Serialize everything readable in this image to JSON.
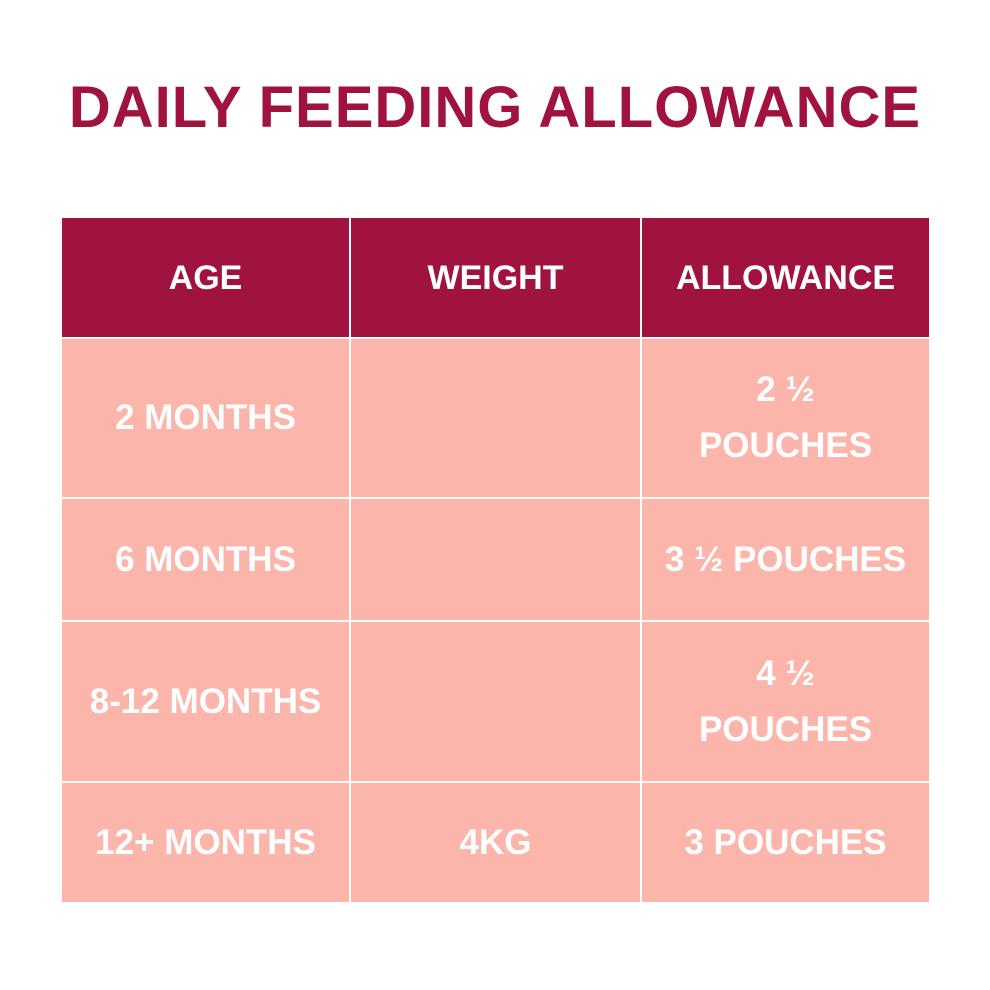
{
  "title": "DAILY FEEDING ALLOWANCE",
  "table": {
    "header": [
      "AGE",
      "WEIGHT",
      "ALLOWANCE"
    ],
    "rows": [
      [
        "2 MONTHS",
        null,
        "2 ½ POUCHES"
      ],
      [
        "6 MONTHS",
        null,
        "3 ½ POUCHES"
      ],
      [
        "8-12 MONTHS",
        null,
        "4 ½ POUCHES"
      ],
      [
        "12+ MONTHS",
        "4KG",
        "3 POUCHES"
      ]
    ]
  }
}
